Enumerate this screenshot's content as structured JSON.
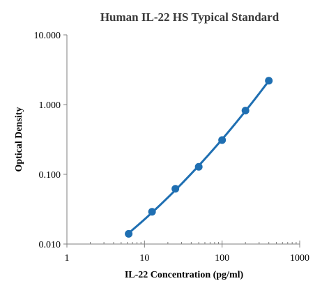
{
  "chart_data": {
    "type": "scatter",
    "title": "Human IL-22 HS Typical Standard",
    "xlabel": "IL-22  Concentration (pg/ml)",
    "ylabel": "Optical Density",
    "x_scale": "log",
    "y_scale": "log",
    "xlim": [
      1,
      1000
    ],
    "ylim": [
      0.01,
      10
    ],
    "x_ticks": [
      "1",
      "10",
      "100",
      "1000"
    ],
    "y_ticks": [
      "0.010",
      "0.100",
      "1.000",
      "10.000"
    ],
    "grid": false,
    "series": [
      {
        "x": [
          6.25,
          12.5,
          25,
          50,
          100,
          200,
          400
        ],
        "y": [
          0.014,
          0.029,
          0.062,
          0.128,
          0.31,
          0.82,
          2.2
        ],
        "fit_line": true
      }
    ],
    "colors": {
      "series": "#1f6fb2",
      "axis": "#7f7f7f"
    }
  }
}
